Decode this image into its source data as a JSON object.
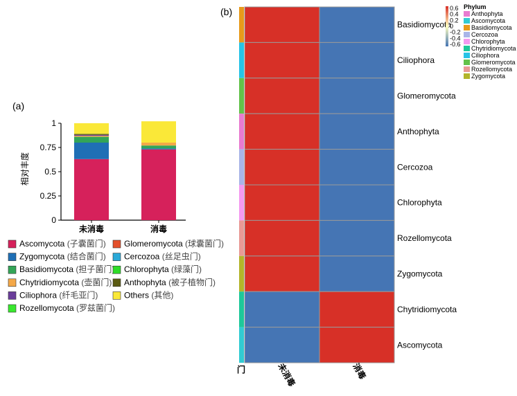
{
  "chart_data": [
    {
      "panel_label": "(a)",
      "type": "bar",
      "stacked": true,
      "ylabel": "相对丰度",
      "ylim": [
        0,
        1
      ],
      "yticks": [
        "0",
        "0.25",
        "0.5",
        "0.75",
        "1"
      ],
      "categories": [
        "未消毒",
        "消毒"
      ],
      "series": [
        {
          "name": "Ascomycota",
          "cn": "(子囊菌门)",
          "color": "#D6215B",
          "values": [
            0.63,
            0.73
          ]
        },
        {
          "name": "Zygomycota",
          "cn": "(结合菌门)",
          "color": "#1F6FB5",
          "values": [
            0.17,
            0.01
          ]
        },
        {
          "name": "Basidiomycota",
          "cn": "(担子菌门)",
          "color": "#33A557",
          "values": [
            0.06,
            0.03
          ]
        },
        {
          "name": "Chytridiomycota",
          "cn": "(壶菌门)",
          "color": "#F4A848",
          "values": [
            0.01,
            0.03
          ]
        },
        {
          "name": "Ciliophora",
          "cn": "(纤毛亚门)",
          "color": "#6A3D9A",
          "values": [
            0.01,
            0.0
          ]
        },
        {
          "name": "Rozellomycota",
          "cn": "(罗兹菌门)",
          "color": "#39E82E",
          "values": [
            0.0,
            0.0
          ]
        },
        {
          "name": "Glomeromycota",
          "cn": "(球囊菌门)",
          "color": "#E4502B",
          "values": [
            0.0,
            0.0
          ]
        },
        {
          "name": "Cercozoa",
          "cn": "(丝足虫门)",
          "color": "#2BA9D8",
          "values": [
            0.0,
            0.0
          ]
        },
        {
          "name": "Chlorophyta",
          "cn": "(绿藻门)",
          "color": "#2EDC28",
          "values": [
            0.0,
            0.0
          ]
        },
        {
          "name": "Anthophyta",
          "cn": "(被子植物门)",
          "color": "#5B5B12",
          "values": [
            0.01,
            0.0
          ]
        },
        {
          "name": "Others",
          "cn": "(其他)",
          "color": "#FAE838",
          "values": [
            0.11,
            0.22
          ]
        }
      ]
    },
    {
      "panel_label": "(b)",
      "type": "heatmap",
      "columns": [
        "未消毒",
        "消毒"
      ],
      "rows": [
        "Basidiomycota",
        "Ciliophora",
        "Glomeromycota",
        "Anthophyta",
        "Cercozoa",
        "Chlorophyta",
        "Rozellomycota",
        "Zygomycota",
        "Chytridiomycota",
        "Ascomycota"
      ],
      "values": [
        [
          0.7,
          -0.7
        ],
        [
          0.7,
          -0.7
        ],
        [
          0.7,
          -0.7
        ],
        [
          0.7,
          -0.7
        ],
        [
          0.7,
          -0.7
        ],
        [
          0.7,
          -0.7
        ],
        [
          0.7,
          -0.7
        ],
        [
          0.7,
          -0.7
        ],
        [
          -0.7,
          0.7
        ],
        [
          -0.7,
          0.7
        ]
      ],
      "annotation_title": "门",
      "row_annotation": [
        "Basidiomycota",
        "Ciliophora",
        "Glomeromycota",
        "Anthophyta",
        "Cercozoa",
        "Chlorophyta",
        "Rozellomycota",
        "Zygomycota",
        "Chytridiomycota",
        "Ascomycota"
      ],
      "colorbar": {
        "ticks": [
          "0.6",
          "0.4",
          "0.2",
          "0",
          "-0.2",
          "-0.4",
          "-0.6"
        ],
        "colors": [
          "#D73027",
          "#FFFFBF",
          "#4575B4"
        ]
      },
      "legend_title": "Phylum",
      "legend": [
        {
          "name": "Anthophyta",
          "color": "#E87BD0"
        },
        {
          "name": "Ascomycota",
          "color": "#32CBD2"
        },
        {
          "name": "Basidiomycota",
          "color": "#E89A1B"
        },
        {
          "name": "Cercozoa",
          "color": "#A9B5E8"
        },
        {
          "name": "Chlorophyta",
          "color": "#F49AF0"
        },
        {
          "name": "Chytridiomycota",
          "color": "#1EC89A"
        },
        {
          "name": "Ciliophora",
          "color": "#27C3E6"
        },
        {
          "name": "Glomeromycota",
          "color": "#63C24A"
        },
        {
          "name": "Rozellomycota",
          "color": "#E99A96"
        },
        {
          "name": "Zygomycota",
          "color": "#B3B42A"
        }
      ]
    }
  ]
}
